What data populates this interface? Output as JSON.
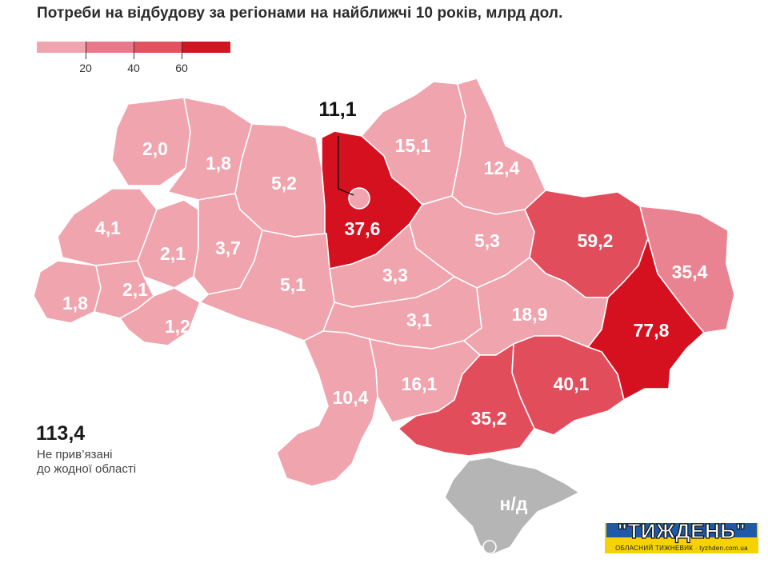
{
  "title": "Потреби на відбудову за регіонами на найближчі 10 років, млрд дол.",
  "legend": {
    "ticks": [
      "20",
      "40",
      "60"
    ],
    "colors": [
      "#f0a4ae",
      "#e9798a",
      "#e2535f",
      "#d01622"
    ]
  },
  "colors": {
    "level1": "#f0a4ae",
    "level2": "#ea8391",
    "level3": "#e24d5c",
    "level4": "#d5111f",
    "na": "#b5b5b5",
    "border": "#ffffff"
  },
  "regions": [
    {
      "value": "2,0"
    },
    {
      "value": "1,8"
    },
    {
      "value": "5,2"
    },
    {
      "value": "15,1"
    },
    {
      "value": "12,4"
    },
    {
      "value": "4,1"
    },
    {
      "value": "2,1"
    },
    {
      "value": "3,7"
    },
    {
      "value": "37,6"
    },
    {
      "value": "5,3"
    },
    {
      "value": "59,2"
    },
    {
      "value": "35,4"
    },
    {
      "value": "1,8"
    },
    {
      "value": "2,1"
    },
    {
      "value": "1,2"
    },
    {
      "value": "5,1"
    },
    {
      "value": "3,3"
    },
    {
      "value": "3,1"
    },
    {
      "value": "18,9"
    },
    {
      "value": "77,8"
    },
    {
      "value": "40,1"
    },
    {
      "value": "10,4"
    },
    {
      "value": "16,1"
    },
    {
      "value": "35,2"
    },
    {
      "value": "н/д"
    }
  ],
  "kyiv_city": {
    "value": "11,1"
  },
  "unassigned": {
    "value": "113,4",
    "label_line1": "Не прив’язані",
    "label_line2": "до жодної області"
  },
  "logo": {
    "text": "\"ТИЖДЕНЬ\"",
    "subtitle": "ОБЛАСНИЙ ТИЖНЕВИК · tyzhden.com.ua"
  }
}
